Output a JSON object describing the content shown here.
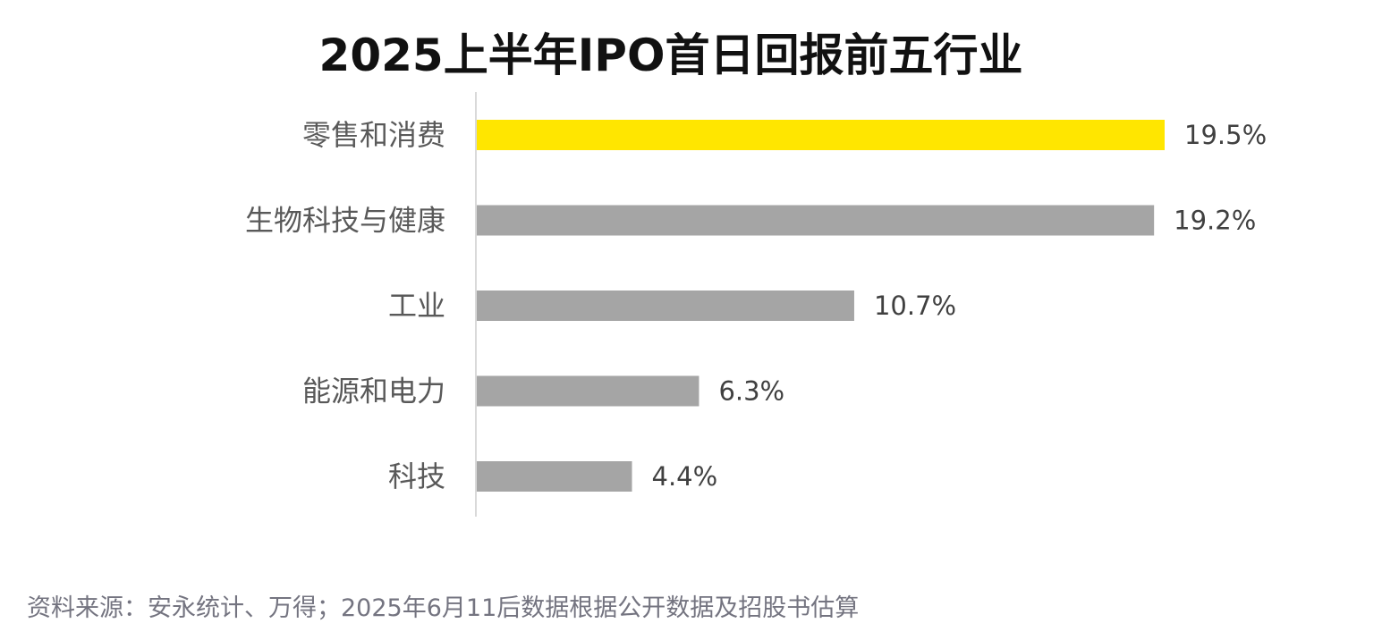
{
  "chart_data": {
    "type": "bar",
    "orientation": "horizontal",
    "title": "2025上半年IPO首日回报前五行业",
    "categories": [
      "零售和消费",
      "生物科技与健康",
      "工业",
      "能源和电力",
      "科技"
    ],
    "values": [
      19.5,
      19.2,
      10.7,
      6.3,
      4.4
    ],
    "value_labels": [
      "19.5%",
      "19.2%",
      "10.7%",
      "6.3%",
      "4.4%"
    ],
    "unit": "%",
    "highlight_index": 0,
    "xlabel": "",
    "ylabel": "",
    "xlim": [
      0,
      19.5
    ],
    "grid": false,
    "legend": "none",
    "colors": {
      "highlight": "#FFE600",
      "bar": "#A5A5A5",
      "axis": "#D9D9D9",
      "label_text": "#595959",
      "value_text": "#404040"
    }
  },
  "footnote": "资料来源：安永统计、万得；2025年6月11后数据根据公开数据及招股书估算"
}
